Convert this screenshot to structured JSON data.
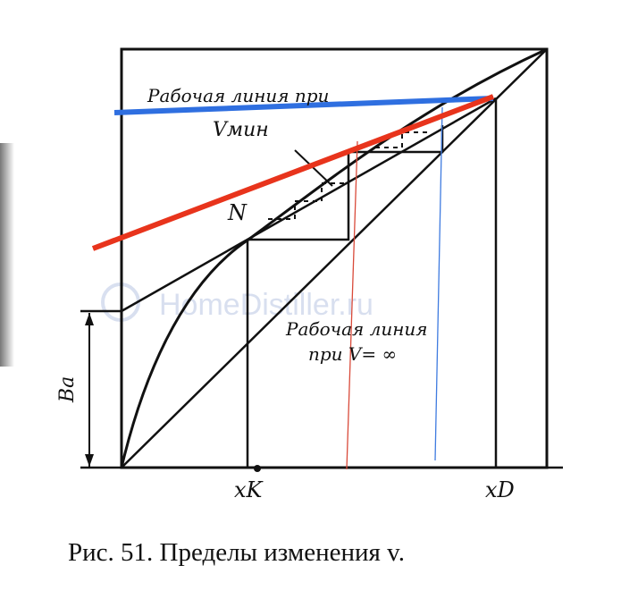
{
  "labels": {
    "working_line_min": "Рабочая линия при",
    "v_min": "Vмин",
    "point_n": "N",
    "working_line_inf_line1": "Рабочая линия",
    "working_line_inf_line2": "при V= ∞",
    "b_a": "Ba",
    "x_k": "xK",
    "x_d": "xD"
  },
  "caption": "Рис. 51. Пределы изменения v.",
  "watermark": "HomeDistiller.ru",
  "colors": {
    "blue_line": "#2f6fe0",
    "red_line": "#e8341c",
    "thin_red": "#d94a3a",
    "thin_blue": "#3f7be0",
    "ink": "#111111"
  }
}
